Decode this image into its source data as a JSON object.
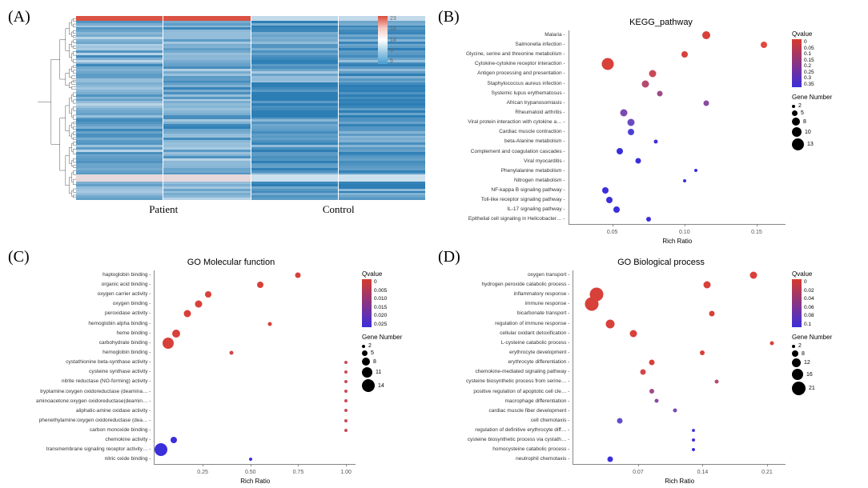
{
  "panels": {
    "A": {
      "label": "(A)"
    },
    "B": {
      "label": "(B)",
      "title": "KEGG_pathway"
    },
    "C": {
      "label": "(C)",
      "title": "GO Molecular function"
    },
    "D": {
      "label": "(D)",
      "title": "GO Biological process"
    }
  },
  "heatmap": {
    "n_rows": 80,
    "columns": [
      "Patient",
      "Patient",
      "Control",
      "Control"
    ],
    "column_group_labels": [
      "Patient",
      "Control"
    ],
    "colorbar": {
      "ticks": [
        "23",
        "18",
        "14",
        "9",
        "5"
      ],
      "gradient_colors": [
        "#d94a3a",
        "#f5c9c2",
        "#ffffff",
        "#9dcbe4",
        "#4a9fd1"
      ]
    },
    "palette_low": "#2d7eb5",
    "palette_mid": "#e8f1f7",
    "palette_high": "#d94a3a"
  },
  "kegg": {
    "xlabel": "Rich Ratio",
    "xticks": [
      "0.05",
      "0.10",
      "0.15"
    ],
    "xlim": [
      0.02,
      0.17
    ],
    "qvalue": {
      "title": "Qvalue",
      "ticks": [
        "0",
        "0.05",
        "0.1",
        "0.15",
        "0.2",
        "0.25",
        "0.3",
        "0.35"
      ],
      "colors": [
        "#d43b2e",
        "#3b2edb"
      ]
    },
    "gene_number": {
      "title": "Gene Number",
      "items": [
        {
          "label": "2",
          "size": 4
        },
        {
          "label": "5",
          "size": 7
        },
        {
          "label": "8",
          "size": 10
        },
        {
          "label": "10",
          "size": 12
        },
        {
          "label": "13",
          "size": 15
        }
      ]
    },
    "categories": [
      "Malaria",
      "Salmonella infection",
      "Glycine, serine and threonine metabolism",
      "Cytokine-cytokine receptor interaction",
      "Antigen processing and presentation",
      "Staphylococcus aureus infection",
      "Systemic lupus erythematosus",
      "African trypanosomiasis",
      "Rheumatoid arthritis",
      "Viral protein interaction with cytokine a…",
      "Cardiac muscle contraction",
      "beta-Alanine metabolism",
      "Complement and coagulation cascades",
      "Viral myocarditis",
      "Phenylalanine metabolism",
      "Nitrogen metabolism",
      "NF-kappa B signaling pathway",
      "Toll-like receptor signaling pathway",
      "IL-17 signaling pathway",
      "Epithelial cell signaling in Helicobacter…"
    ],
    "points": [
      {
        "x": 0.115,
        "size": 10,
        "color": "#d8403a"
      },
      {
        "x": 0.155,
        "size": 8,
        "color": "#e04a3e"
      },
      {
        "x": 0.1,
        "size": 8,
        "color": "#d8403a"
      },
      {
        "x": 0.047,
        "size": 15,
        "color": "#d8403a"
      },
      {
        "x": 0.078,
        "size": 9,
        "color": "#c84a58"
      },
      {
        "x": 0.073,
        "size": 9,
        "color": "#b64a70"
      },
      {
        "x": 0.083,
        "size": 7,
        "color": "#a04a88"
      },
      {
        "x": 0.115,
        "size": 7,
        "color": "#8a4aa0"
      },
      {
        "x": 0.058,
        "size": 9,
        "color": "#7a4ab0"
      },
      {
        "x": 0.063,
        "size": 9,
        "color": "#6a4ac0"
      },
      {
        "x": 0.063,
        "size": 8,
        "color": "#4a40d0"
      },
      {
        "x": 0.08,
        "size": 5,
        "color": "#4030d8"
      },
      {
        "x": 0.055,
        "size": 8,
        "color": "#3b2edb"
      },
      {
        "x": 0.068,
        "size": 7,
        "color": "#3b2edb"
      },
      {
        "x": 0.108,
        "size": 4,
        "color": "#3b2edb"
      },
      {
        "x": 0.1,
        "size": 4,
        "color": "#3b2edb"
      },
      {
        "x": 0.045,
        "size": 8,
        "color": "#3b2edb"
      },
      {
        "x": 0.048,
        "size": 8,
        "color": "#3b2edb"
      },
      {
        "x": 0.053,
        "size": 8,
        "color": "#3b2edb"
      },
      {
        "x": 0.075,
        "size": 6,
        "color": "#3b2edb"
      }
    ]
  },
  "go_mf": {
    "xlabel": "Rich Ratio",
    "xticks": [
      "0.25",
      "0.50",
      "0.75",
      "1.00"
    ],
    "xlim": [
      0.0,
      1.05
    ],
    "qvalue": {
      "title": "Qvalue",
      "ticks": [
        "0",
        "0.005",
        "0.010",
        "0.015",
        "0.020",
        "0.025"
      ],
      "colors": [
        "#d43b2e",
        "#3b2edb"
      ]
    },
    "gene_number": {
      "title": "Gene Number",
      "items": [
        {
          "label": "2",
          "size": 4
        },
        {
          "label": "5",
          "size": 7
        },
        {
          "label": "8",
          "size": 10
        },
        {
          "label": "11",
          "size": 13
        },
        {
          "label": "14",
          "size": 16
        }
      ]
    },
    "categories": [
      "haptoglobin binding",
      "organic acid binding",
      "oxygen carrier activity",
      "oxygen binding",
      "peroxidase activity",
      "hemoglobin alpha binding",
      "heme binding",
      "carbohydrate binding",
      "hemoglobin binding",
      "cystathionine beta-synthase activity",
      "cysteine synthase activity",
      "nitrite reductase (NO-forming) activity",
      "tryptamine:oxygen oxidoreductase (deamina…",
      "aminoacetone:oxygen oxidoreductase(deamin…",
      "aliphatic-amine oxidase activity",
      "phenethylamine:oxygen oxidoreductase (dea…",
      "carbon monoxide binding",
      "chemokine activity",
      "transmembrane signaling receptor activity…",
      "nitric oxide binding"
    ],
    "points": [
      {
        "x": 0.75,
        "size": 7,
        "color": "#d8403a"
      },
      {
        "x": 0.55,
        "size": 8,
        "color": "#d8403a"
      },
      {
        "x": 0.28,
        "size": 8,
        "color": "#d8403a"
      },
      {
        "x": 0.23,
        "size": 9,
        "color": "#d8403a"
      },
      {
        "x": 0.17,
        "size": 9,
        "color": "#d8403a"
      },
      {
        "x": 0.6,
        "size": 5,
        "color": "#d8403a"
      },
      {
        "x": 0.11,
        "size": 10,
        "color": "#d8403a"
      },
      {
        "x": 0.07,
        "size": 14,
        "color": "#d8403a"
      },
      {
        "x": 0.4,
        "size": 5,
        "color": "#d0464a"
      },
      {
        "x": 1.0,
        "size": 4,
        "color": "#c84a58"
      },
      {
        "x": 1.0,
        "size": 4,
        "color": "#c84a58"
      },
      {
        "x": 1.0,
        "size": 4,
        "color": "#c84a58"
      },
      {
        "x": 1.0,
        "size": 4,
        "color": "#c84a58"
      },
      {
        "x": 1.0,
        "size": 4,
        "color": "#c84a58"
      },
      {
        "x": 1.0,
        "size": 4,
        "color": "#c84a58"
      },
      {
        "x": 1.0,
        "size": 4,
        "color": "#c84a58"
      },
      {
        "x": 1.0,
        "size": 4,
        "color": "#c84a58"
      },
      {
        "x": 0.1,
        "size": 8,
        "color": "#3b2edb"
      },
      {
        "x": 0.03,
        "size": 16,
        "color": "#3b2edb"
      },
      {
        "x": 0.5,
        "size": 4,
        "color": "#3b2edb"
      }
    ]
  },
  "go_bp": {
    "xlabel": "Rich Ratio",
    "xticks": [
      "0.07",
      "0.14",
      "0.21"
    ],
    "xlim": [
      0.0,
      0.23
    ],
    "qvalue": {
      "title": "Qvalue",
      "ticks": [
        "0",
        "0.02",
        "0.04",
        "0.06",
        "0.08",
        "0.1"
      ],
      "colors": [
        "#d43b2e",
        "#3b2edb"
      ]
    },
    "gene_number": {
      "title": "Gene Number",
      "items": [
        {
          "label": "2",
          "size": 4
        },
        {
          "label": "8",
          "size": 8
        },
        {
          "label": "12",
          "size": 11
        },
        {
          "label": "16",
          "size": 14
        },
        {
          "label": "21",
          "size": 17
        }
      ]
    },
    "categories": [
      "oxygen transport",
      "hydrogen peroxide catabolic process",
      "inflammatory response",
      "immune response",
      "bicarbonate transport",
      "regulation of immune response",
      "cellular oxidant detoxification",
      "L-cysteine catabolic process",
      "erythrocyte development",
      "erythrocyte differentiation",
      "chemokine-mediated signaling pathway",
      "cysteine biosynthetic process from serine…",
      "positive regulation of apoptotic cell cle…",
      "macrophage differentiation",
      "cardiac muscle fiber development",
      "cell chemotaxis",
      "regulation of definitive erythrocyte diff…",
      "cysteine biosynthetic process via cystath…",
      "homocysteine catabolic process",
      "neutrophil chemotaxis"
    ],
    "points": [
      {
        "x": 0.195,
        "size": 9,
        "color": "#d8403a"
      },
      {
        "x": 0.145,
        "size": 9,
        "color": "#d8403a"
      },
      {
        "x": 0.025,
        "size": 17,
        "color": "#d8403a"
      },
      {
        "x": 0.02,
        "size": 17,
        "color": "#d8403a"
      },
      {
        "x": 0.15,
        "size": 7,
        "color": "#d8403a"
      },
      {
        "x": 0.04,
        "size": 11,
        "color": "#d8403a"
      },
      {
        "x": 0.065,
        "size": 9,
        "color": "#d8403a"
      },
      {
        "x": 0.215,
        "size": 5,
        "color": "#d8403a"
      },
      {
        "x": 0.14,
        "size": 6,
        "color": "#d8403a"
      },
      {
        "x": 0.085,
        "size": 7,
        "color": "#d8403a"
      },
      {
        "x": 0.075,
        "size": 7,
        "color": "#d0464a"
      },
      {
        "x": 0.155,
        "size": 5,
        "color": "#b64a70"
      },
      {
        "x": 0.085,
        "size": 6,
        "color": "#a04a88"
      },
      {
        "x": 0.09,
        "size": 5,
        "color": "#8a4aa0"
      },
      {
        "x": 0.11,
        "size": 5,
        "color": "#7a4ab0"
      },
      {
        "x": 0.05,
        "size": 7,
        "color": "#6050c8"
      },
      {
        "x": 0.13,
        "size": 4,
        "color": "#4a40d0"
      },
      {
        "x": 0.13,
        "size": 4,
        "color": "#4030d8"
      },
      {
        "x": 0.13,
        "size": 4,
        "color": "#4030d8"
      },
      {
        "x": 0.04,
        "size": 7,
        "color": "#3b2edb"
      }
    ]
  }
}
